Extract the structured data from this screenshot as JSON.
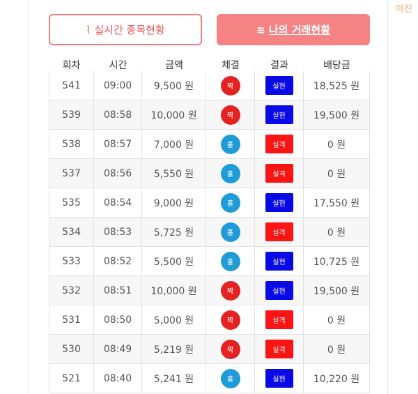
{
  "watermark": "마진",
  "tabs": [
    {
      "label": "실시간 종목현황"
    },
    {
      "label": "나의 거래현황"
    }
  ],
  "table": {
    "headers": [
      "회차",
      "시간",
      "금액",
      "체결",
      "결과",
      "배당금"
    ],
    "colors": {
      "짝": "#e52222",
      "홀": "#1f9bd7",
      "실현": "#0a0ae6",
      "실격": "#fa1414"
    },
    "rows": [
      [
        "541",
        "09:00",
        "9,500 원",
        "짝",
        "실현",
        "18,525 원"
      ],
      [
        "539",
        "08:58",
        "10,000 원",
        "짝",
        "실현",
        "19,500 원"
      ],
      [
        "538",
        "08:57",
        "7,000 원",
        "홀",
        "실격",
        "0 원"
      ],
      [
        "537",
        "08:56",
        "5,550 원",
        "홀",
        "실격",
        "0 원"
      ],
      [
        "535",
        "08:54",
        "9,000 원",
        "홀",
        "실현",
        "17,550 원"
      ],
      [
        "534",
        "08:53",
        "5,725 원",
        "홀",
        "실격",
        "0 원"
      ],
      [
        "533",
        "08:52",
        "5,500 원",
        "홀",
        "실현",
        "10,725 원"
      ],
      [
        "532",
        "08:51",
        "10,000 원",
        "짝",
        "실현",
        "19,500 원"
      ],
      [
        "531",
        "08:50",
        "5,000 원",
        "짝",
        "실격",
        "0 원"
      ],
      [
        "530",
        "08:49",
        "5,219 원",
        "짝",
        "실격",
        "0 원"
      ],
      [
        "521",
        "08:40",
        "5,241 원",
        "홀",
        "실현",
        "10,220 원"
      ]
    ]
  }
}
